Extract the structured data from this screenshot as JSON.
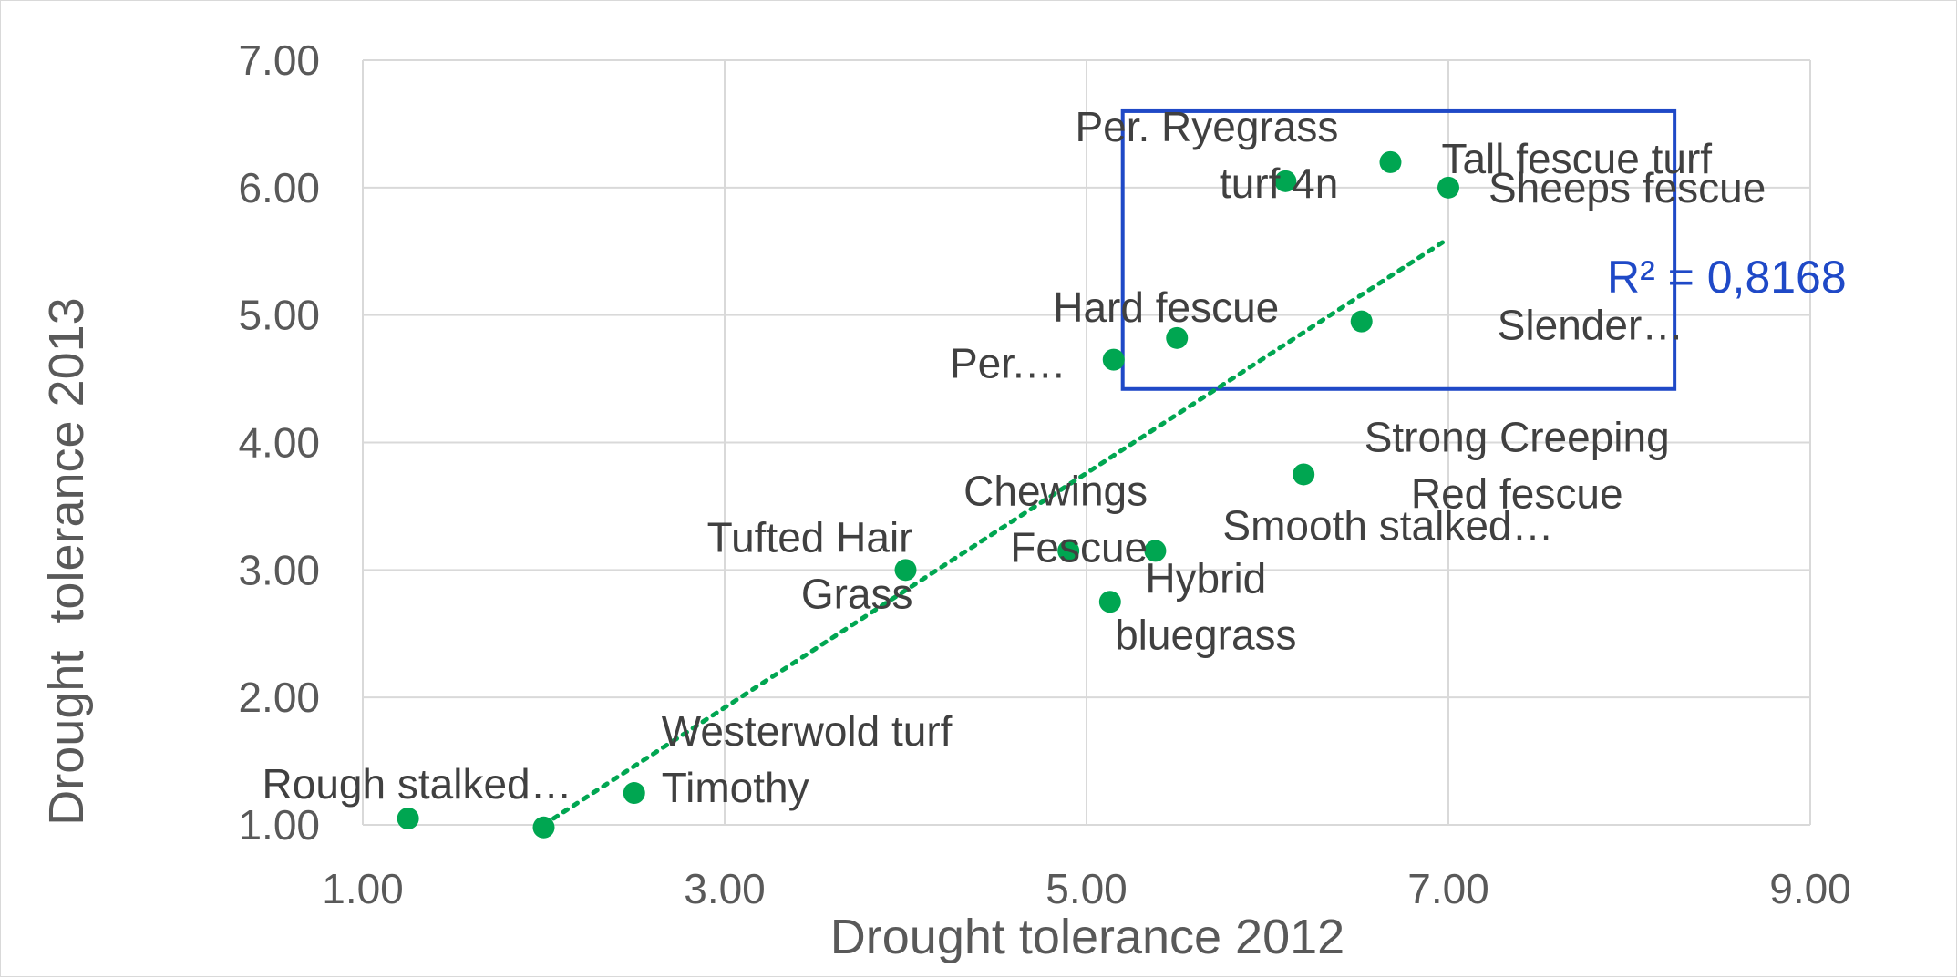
{
  "chart_data": {
    "type": "scatter",
    "title": "",
    "xlabel": "Drought tolerance 2012",
    "ylabel": "Drought  tolerance 2013",
    "xlim": [
      1,
      9
    ],
    "ylim": [
      1,
      7
    ],
    "x_ticks": [
      "1.00",
      "3.00",
      "5.00",
      "7.00",
      "9.00"
    ],
    "y_ticks": [
      "1.00",
      "2.00",
      "3.00",
      "4.00",
      "5.00",
      "6.00",
      "7.00"
    ],
    "grid": true,
    "marker_color": "#00a651",
    "trendline": {
      "type": "linear",
      "style": "dotted",
      "color": "#00a651",
      "x_start": 2.0,
      "y_start": 1.0,
      "x_end": 7.0,
      "y_end": 5.6,
      "label": "R² = 0,8168",
      "label_color": "#1f49c7"
    },
    "highlight_box": {
      "color": "#1f49c7",
      "x_range": [
        5.2,
        8.25
      ],
      "y_range": [
        4.42,
        6.6
      ]
    },
    "points": [
      {
        "x": 1.25,
        "y": 1.05,
        "label": [
          "Rough stalked…"
        ]
      },
      {
        "x": 2.0,
        "y": 0.98,
        "label": []
      },
      {
        "x": 2.5,
        "y": 1.25,
        "label": [
          "Westerwold turf",
          "Timothy"
        ]
      },
      {
        "x": 4.0,
        "y": 3.0,
        "label": [
          "Tufted Hair",
          "Grass"
        ]
      },
      {
        "x": 4.9,
        "y": 3.15,
        "label": [
          "Chewings",
          "Fescue"
        ]
      },
      {
        "x": 5.13,
        "y": 2.75,
        "label": [
          "Hybrid",
          "bluegrass"
        ]
      },
      {
        "x": 5.38,
        "y": 3.15,
        "label": [
          "Smooth stalked…"
        ]
      },
      {
        "x": 5.15,
        "y": 4.65,
        "label": [
          "Per.…"
        ]
      },
      {
        "x": 5.5,
        "y": 4.82,
        "label": [
          "Hard fescue"
        ]
      },
      {
        "x": 6.2,
        "y": 3.75,
        "label": [
          "Strong Creeping",
          "Red fescue"
        ]
      },
      {
        "x": 6.52,
        "y": 4.95,
        "label": [
          "Slender…"
        ]
      },
      {
        "x": 6.1,
        "y": 6.05,
        "label": [
          "Per. Ryegrass",
          "turf 4n"
        ]
      },
      {
        "x": 6.68,
        "y": 6.2,
        "label": [
          "Tall fescue turf"
        ]
      },
      {
        "x": 7.0,
        "y": 6.0,
        "label": [
          "Sheeps fescue"
        ]
      }
    ]
  }
}
